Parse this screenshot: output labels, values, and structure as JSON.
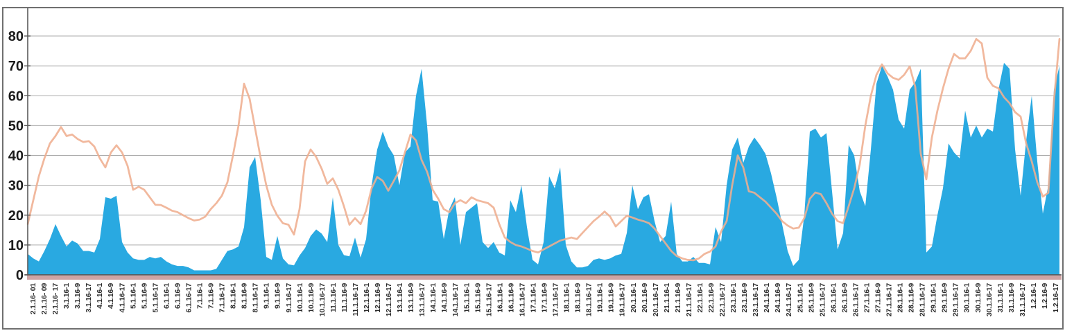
{
  "chart_data": {
    "type": "area",
    "title": "",
    "legend": "none",
    "grid": true,
    "ylabel": "",
    "xlabel": "",
    "y_axis": {
      "min": 0,
      "max": 80,
      "step": 10,
      "tick_labels": [
        "0",
        "10",
        "20",
        "30",
        "40",
        "50",
        "60",
        "70",
        "80"
      ]
    },
    "x_labels": [
      "2.1.16- 01",
      "2.1.16- 09",
      "2.1.16- 17",
      "3.1.16-1",
      "3.1.16-9",
      "3.1.16-17",
      "4.1.16-1",
      "4.1.16-9",
      "4.1.16-17",
      "5.1.16-1",
      "5.1.16-9",
      "5.1.16-17",
      "6.1.16-1",
      "6.1.16-9",
      "6.1.16-17",
      "7.1.16-1",
      "7.1.16-9",
      "7.1.16-17",
      "8.1.16-1",
      "8.1.16-9",
      "8.1.16-17",
      "9.1.16-1",
      "9.1.16-9",
      "9.1.16-17",
      "10.1.16-1",
      "10.1.16-9",
      "10.1.16-17",
      "11.1.16-1",
      "11.1.16-9",
      "11.1.16-17",
      "12.1.16-1",
      "12.1.16-9",
      "12.1.16-17",
      "13.1.16-1",
      "13.1.16-9",
      "13.1.16-17",
      "14.1.16-1",
      "14.1.16-9",
      "14.1.16-17",
      "15.1.16-1",
      "15.1.16-9",
      "15.1.16-17",
      "16.1.16-1",
      "16.1.16-9",
      "16.1.16-17",
      "17.1.16-1",
      "17.1.16-9",
      "17.1.16-17",
      "18.1.16-1",
      "18.1.16-9",
      "18.1.16-17",
      "19.1.16-1",
      "19.1.16-9",
      "19.1.16-17",
      "20.1.16-1",
      "20.1.16-9",
      "20.1.16-17",
      "21.1.16-1",
      "21.1.16-9",
      "21.1.16-17",
      "22.1.16-1",
      "22.1.16-9",
      "22.1.16-17",
      "23.1.16-1",
      "23.1.16-9",
      "23.1.16-17",
      "24.1.16-1",
      "24.1.16-9",
      "24.1.16-17",
      "25.1.16-1",
      "25.1.16-9",
      "25.1.16-17",
      "26.1.16-1",
      "26.1.16-9",
      "26.1.16-17",
      "27.1.16-1",
      "27.1.16-9",
      "27.1.16-17",
      "28.1.16-1",
      "28.1.16-9",
      "28.1.16-17",
      "29.1.16-1",
      "29.1.16-9",
      "29.1.16-17",
      "30.1.16-1",
      "30.1.16-9",
      "30.1.16-17",
      "31.1.16-1",
      "31.1.16-9",
      "31.1.16-17",
      "1.2.16-1",
      "1.2.16-9",
      "1.2.16-17"
    ],
    "series": [
      {
        "name": "blue-area-series",
        "type": "area",
        "color": "#29A9E1",
        "values": [
          7,
          5.5,
          4.5,
          8,
          12,
          17,
          13,
          9.5,
          11.5,
          10.5,
          8,
          8,
          7.5,
          12,
          26,
          25.5,
          26.5,
          11,
          7.5,
          5.5,
          5,
          5,
          6,
          5.5,
          6,
          4.5,
          3.5,
          3,
          3,
          2.5,
          1.5,
          1.5,
          1.5,
          1.5,
          2,
          5,
          8,
          8.5,
          9.5,
          16,
          36,
          39.5,
          25,
          6,
          5,
          13,
          5.5,
          3.5,
          3.2,
          6.5,
          9,
          13,
          15.2,
          13.8,
          11,
          26,
          10,
          6.6,
          6.2,
          12.5,
          5.8,
          12,
          30,
          42,
          48,
          43,
          40,
          30,
          41,
          43,
          60,
          69,
          50,
          25,
          24.5,
          12,
          22,
          26,
          10,
          21,
          22.5,
          24,
          11,
          9,
          11,
          7.5,
          6.5,
          25,
          21,
          30,
          16,
          5,
          3.5,
          11,
          33,
          29,
          36,
          10,
          4.5,
          2.5,
          2.5,
          3,
          5,
          5.5,
          5,
          5.5,
          6.5,
          7,
          14,
          30,
          22,
          26,
          27,
          18,
          11,
          13,
          24.5,
          7,
          4.5,
          4.5,
          6,
          4,
          4,
          3.5,
          16,
          11,
          30,
          42,
          46,
          37.5,
          43,
          46,
          43.5,
          40.5,
          34,
          26,
          17,
          8,
          3,
          5,
          20,
          48,
          49,
          46,
          47.5,
          28,
          8.5,
          14,
          43.5,
          40,
          28,
          23,
          42,
          64,
          70,
          66.5,
          62,
          52,
          49,
          62,
          64.5,
          69,
          7.5,
          9.5,
          20,
          29,
          44,
          41,
          39,
          55,
          46,
          50,
          46,
          49,
          48,
          62,
          71,
          69,
          42,
          26.5,
          45,
          60,
          38,
          20.5,
          30,
          62,
          70
        ]
      },
      {
        "name": "orange-line-series",
        "type": "line",
        "color": "#EFAE90",
        "values": [
          17,
          25,
          33,
          39,
          44,
          46.5,
          49.5,
          46.5,
          47,
          45.5,
          44.5,
          44.8,
          43,
          39,
          36,
          41,
          43.4,
          41,
          36.5,
          28.5,
          29.5,
          28.5,
          26,
          23.5,
          23.4,
          22.5,
          21.5,
          21,
          20,
          19,
          18.2,
          18.5,
          19.5,
          22,
          24,
          26.5,
          31,
          40,
          50,
          64,
          59,
          49,
          39,
          30,
          23.5,
          19.8,
          17.3,
          16.8,
          13.5,
          22,
          38,
          42,
          39.5,
          35.5,
          30.5,
          32.3,
          28.5,
          23,
          16.8,
          19,
          17,
          21.5,
          29,
          32.8,
          31.5,
          28.2,
          31.5,
          35,
          41,
          47,
          45,
          38.5,
          34.5,
          28.5,
          25.5,
          22,
          21,
          24,
          25,
          24,
          26,
          25,
          24.5,
          24,
          22.5,
          17,
          12.5,
          11,
          10,
          9.5,
          8.8,
          8,
          7.5,
          8.5,
          9.5,
          10.5,
          11.5,
          12,
          12.5,
          12,
          14,
          16,
          18,
          19.5,
          21.2,
          19.5,
          16.2,
          18,
          19.8,
          19.2,
          18.5,
          18,
          17.3,
          15.5,
          13,
          10.5,
          8,
          6.3,
          5.5,
          5,
          4.9,
          5.5,
          7,
          7.8,
          9.5,
          14.5,
          18,
          30,
          40,
          36,
          28,
          27.5,
          26,
          24.5,
          22.5,
          20.5,
          18,
          16.5,
          15.5,
          15.8,
          19,
          25.5,
          27.6,
          27,
          24,
          20.5,
          18,
          17.3,
          23,
          29,
          37,
          50,
          60,
          67,
          70.5,
          67.5,
          66,
          65.3,
          67,
          69.8,
          63,
          40.5,
          32,
          46,
          55,
          62.5,
          69,
          74,
          72.5,
          72.5,
          75,
          79,
          77.5,
          66,
          63.3,
          62.5,
          59.5,
          57.5,
          54.5,
          53,
          44,
          38,
          31,
          26.2,
          27.5,
          58,
          79
        ]
      }
    ],
    "colors": {
      "gridline": "#ABABAB",
      "axis": "#595959",
      "hour_tick": "#953735",
      "y_label_text": "#1B1B1B",
      "x_label_text": "#2B2B2B",
      "frame_border": "#6F6F6F",
      "background": "#FFFFFF"
    }
  }
}
